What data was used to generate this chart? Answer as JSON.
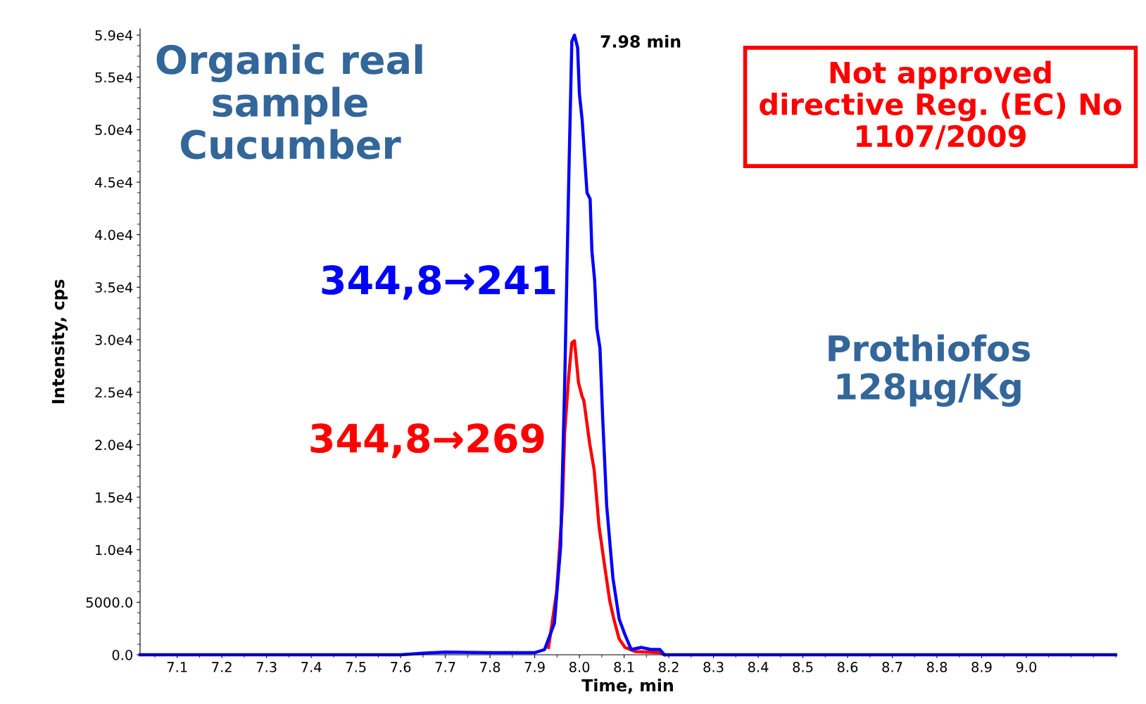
{
  "chart_data": {
    "type": "line",
    "xlabel": "Time, min",
    "ylabel": "Intensity, cps",
    "xlim": [
      7.017,
      9.2
    ],
    "ylim": [
      0,
      59600
    ],
    "xticks": [
      7.1,
      7.2,
      7.3,
      7.4,
      7.5,
      7.6,
      7.7,
      7.8,
      7.9,
      {
        "value": 8.0,
        "label": "8.0"
      },
      8.1,
      8.2,
      8.3,
      8.4,
      8.5,
      8.6,
      8.7,
      8.8,
      8.9,
      {
        "value": 9.0,
        "label": "9.0"
      }
    ],
    "yticks": [
      {
        "value": 0,
        "label": "0.0"
      },
      {
        "value": 5000,
        "label": "5000.0"
      },
      {
        "value": 10000,
        "label": "1.0e4"
      },
      {
        "value": 15000,
        "label": "1.5e4"
      },
      {
        "value": 20000,
        "label": "2.0e4"
      },
      {
        "value": 25000,
        "label": "2.5e4"
      },
      {
        "value": 30000,
        "label": "3.0e4"
      },
      {
        "value": 35000,
        "label": "3.5e4"
      },
      {
        "value": 40000,
        "label": "4.0e4"
      },
      {
        "value": 45000,
        "label": "4.5e4"
      },
      {
        "value": 50000,
        "label": "5.0e4"
      },
      {
        "value": 55000,
        "label": "5.5e4"
      },
      {
        "value": 59000,
        "label": "5.9e4"
      }
    ],
    "grid": false,
    "legend": false,
    "marker": "none",
    "line_style": "solid",
    "series": [
      {
        "name": "344,8→269",
        "color": "#ff0000",
        "x": [
          7.931,
          7.949,
          7.962,
          7.967,
          7.976,
          7.983,
          7.989,
          7.998,
          8.006,
          8.01,
          8.023,
          8.033,
          8.044,
          8.058,
          8.068,
          8.077,
          8.089,
          8.102,
          8.125,
          8.18,
          8.19
        ],
        "values": [
          700,
          6000,
          14200,
          21100,
          26500,
          29700,
          29900,
          25900,
          24600,
          24200,
          20100,
          17600,
          12200,
          8000,
          5100,
          3400,
          1500,
          700,
          300,
          200,
          0
        ]
      },
      {
        "name": "344,8→241",
        "color": "#0000ff",
        "x": [
          7.017,
          7.6,
          7.65,
          7.7,
          7.8,
          7.9,
          7.922,
          7.944,
          7.958,
          7.967,
          7.976,
          7.983,
          7.989,
          7.996,
          8.0,
          8.006,
          8.017,
          8.024,
          8.028,
          8.034,
          8.039,
          8.046,
          8.052,
          8.061,
          8.075,
          8.089,
          8.102,
          8.116,
          8.139,
          8.16,
          8.18,
          8.19,
          9.2
        ],
        "values": [
          0,
          0,
          150,
          250,
          200,
          200,
          500,
          3000,
          10300,
          25700,
          44900,
          58400,
          59000,
          57800,
          53400,
          51000,
          44000,
          43400,
          38400,
          35700,
          31100,
          29200,
          22600,
          14200,
          7300,
          3400,
          1900,
          500,
          700,
          500,
          500,
          0,
          0
        ]
      }
    ],
    "annotations": [
      {
        "text": "7.98 min",
        "x": 7.98,
        "y": 59000
      },
      "Organic real\nsample\nCucumber",
      "Not approved\ndirective Reg. (EC) No\n1107/2009",
      "Prothiofos\n128µg/Kg"
    ]
  }
}
